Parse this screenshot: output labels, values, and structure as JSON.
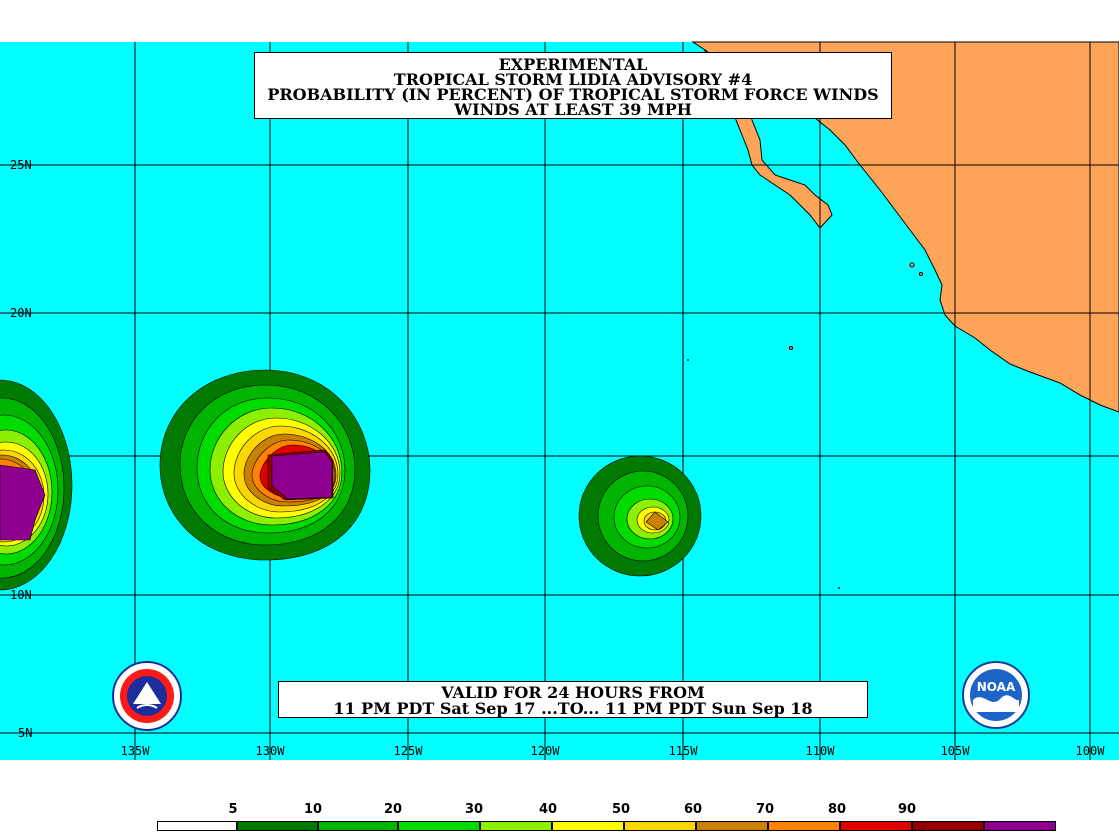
{
  "title": {
    "line1": "EXPERIMENTAL",
    "line2": "TROPICAL STORM LIDIA ADVISORY #4",
    "line3": "PROBABILITY (IN PERCENT) OF TROPICAL STORM FORCE WINDS",
    "line4": "WINDS AT LEAST 39 MPH"
  },
  "valid": {
    "line1": "VALID FOR 24 HOURS FROM",
    "line2": "11 PM PDT Sat Sep 17 ...TO... 11 PM PDT Sun Sep 18"
  },
  "lat_labels": [
    "25N",
    "20N",
    "10N",
    "5N"
  ],
  "lon_labels": [
    "135W",
    "130W",
    "125W",
    "120W",
    "115W",
    "110W",
    "105W",
    "100W"
  ],
  "legend": {
    "labels": [
      "5",
      "10",
      "20",
      "30",
      "40",
      "50",
      "60",
      "70",
      "80",
      "90"
    ],
    "colors": [
      "#ffffff",
      "#007a00",
      "#00b400",
      "#00dc00",
      "#8cf000",
      "#ffff00",
      "#ffd700",
      "#c88200",
      "#ff8200",
      "#e10000",
      "#960000",
      "#900090"
    ]
  },
  "colors": {
    "ocean": "#00ffff",
    "land": "#ffa55a",
    "grid": "#000000"
  },
  "logos": {
    "left": "nws-logo",
    "right": "noaa-logo",
    "right_text": "NOAA"
  }
}
